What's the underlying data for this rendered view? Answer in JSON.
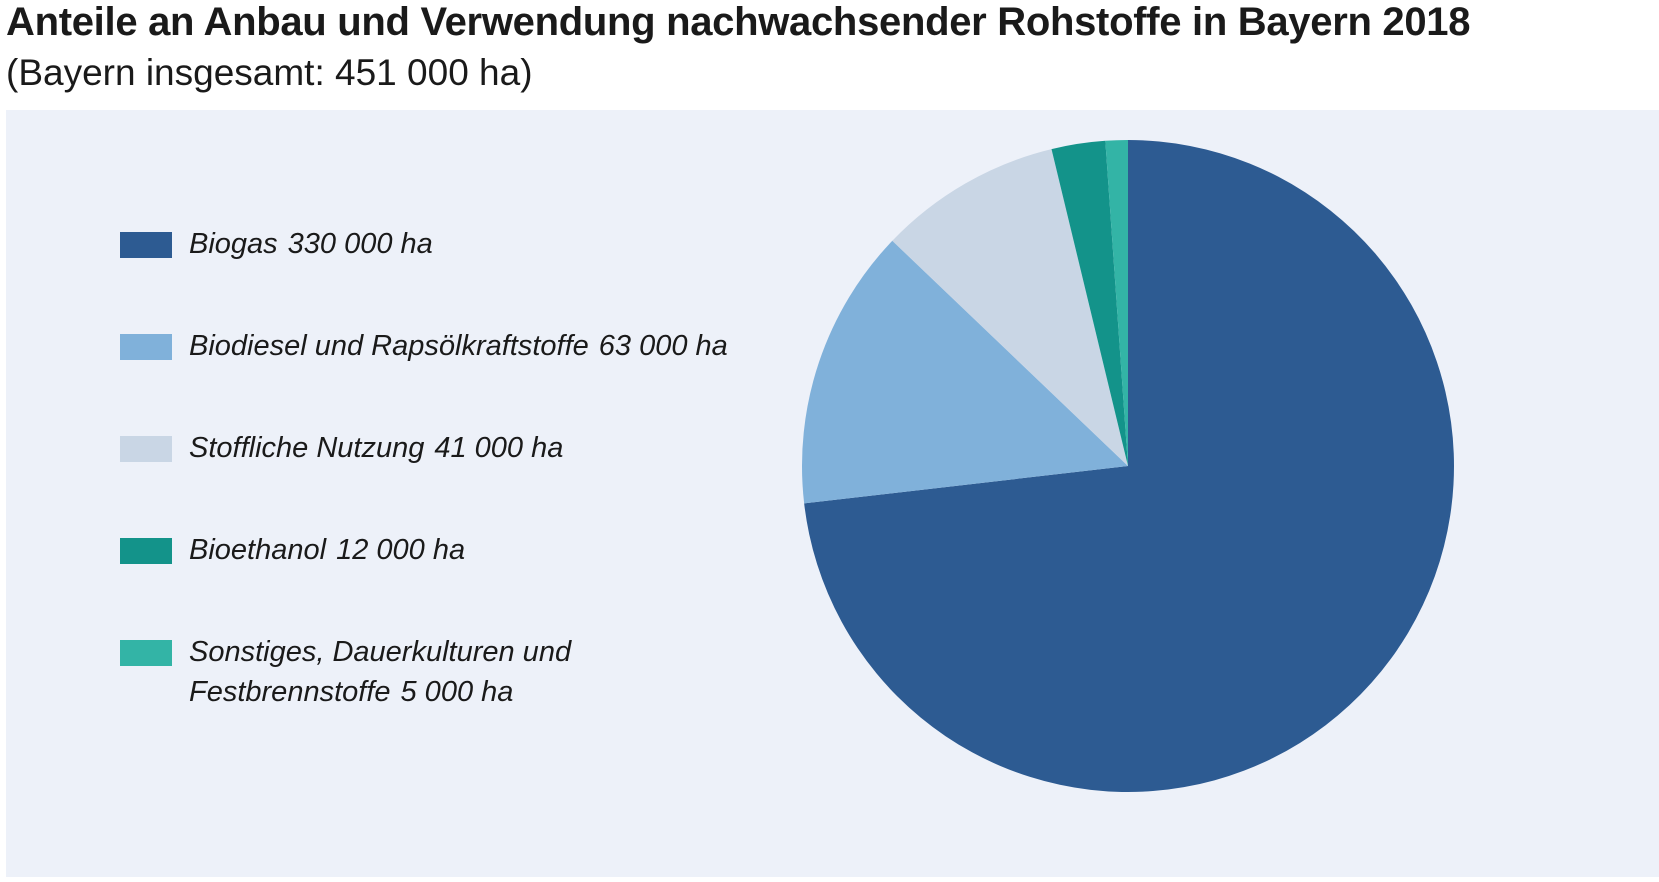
{
  "title": "Anteile an Anbau und Verwendung nachwachsender Rohstoffe in Bayern 2018",
  "subtitle": "(Bayern insgesamt: 451 000 ha)",
  "chart_data": {
    "type": "pie",
    "title": "Anteile an Anbau und Verwendung nachwachsender Rohstoffe in Bayern 2018",
    "subtitle": "(Bayern insgesamt: 451 000 ha)",
    "total_label": "451 000 ha",
    "unit": "ha",
    "legend_position": "left",
    "start": "12 o'clock, clockwise",
    "slices": [
      {
        "name": "Biogas",
        "value": 330000,
        "value_label": "330 000 ha",
        "color": "#2d5b92"
      },
      {
        "name": "Biodiesel und Rapsölkraftstoffe",
        "value": 63000,
        "value_label": "63 000 ha",
        "color": "#80b1da"
      },
      {
        "name": "Stoffliche Nutzung",
        "value": 41000,
        "value_label": "41 000 ha",
        "color": "#c9d6e5"
      },
      {
        "name": "Bioethanol",
        "value": 12000,
        "value_label": "12 000 ha",
        "color": "#13938a"
      },
      {
        "name": "Sonstiges, Dauerkulturen und Festbrennstoffe",
        "value": 5000,
        "value_label": "5 000 ha",
        "color": "#33b4a6",
        "label_lines": [
          "Sonstiges, Dauerkulturen und",
          "Festbrennstoffe"
        ]
      }
    ]
  }
}
